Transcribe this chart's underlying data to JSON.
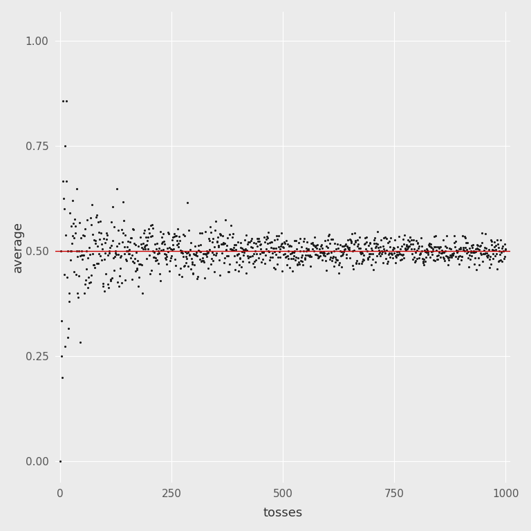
{
  "title": "",
  "xlabel": "tosses",
  "ylabel": "average",
  "xlim": [
    -10,
    1010
  ],
  "ylim": [
    -0.05,
    1.07
  ],
  "hline_y": 0.5,
  "hline_color": "#cc0000",
  "point_color": "#1a1a1a",
  "point_size": 5,
  "background_color": "#ebebeb",
  "panel_color": "#ebebeb",
  "grid_color": "#ffffff",
  "n_tosses": 1000,
  "random_seed": 42,
  "yticks": [
    0.0,
    0.25,
    0.5,
    0.75,
    1.0
  ],
  "xticks": [
    0,
    250,
    500,
    750,
    1000
  ]
}
